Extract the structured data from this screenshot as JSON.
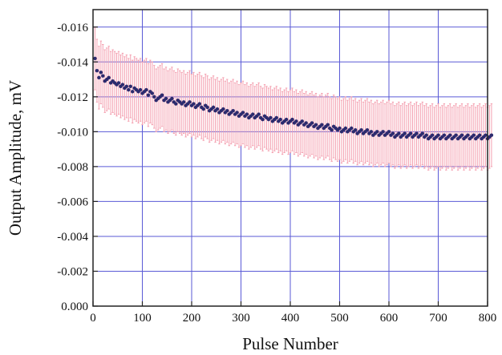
{
  "chart_data": {
    "type": "scatter",
    "title": "",
    "xlabel": "Pulse Number",
    "ylabel": "Output Amplitude, mV",
    "xlim": [
      0,
      800
    ],
    "ylim": [
      0.0,
      -0.017
    ],
    "y_axis_inverted": true,
    "grid": true,
    "x_ticks": [
      "0",
      "100",
      "200",
      "300",
      "400",
      "500",
      "600",
      "700",
      "800"
    ],
    "y_ticks": [
      "0.000",
      "-0.002",
      "-0.004",
      "-0.006",
      "-0.008",
      "-0.010",
      "-0.012",
      "-0.014",
      "-0.016"
    ],
    "series": [
      {
        "marker_color": "#2b2b6e",
        "errorbar_color": "#f4a0b0",
        "error_half_width": 0.0018,
        "x_start": 4,
        "x_step": 4,
        "values": [
          -0.0142,
          -0.0135,
          -0.0131,
          -0.0134,
          -0.0132,
          -0.0129,
          -0.013,
          -0.0131,
          -0.0128,
          -0.0129,
          -0.0128,
          -0.0127,
          -0.0128,
          -0.0126,
          -0.0127,
          -0.0125,
          -0.0126,
          -0.0124,
          -0.0126,
          -0.0123,
          -0.0125,
          -0.0124,
          -0.0123,
          -0.0124,
          -0.0122,
          -0.0123,
          -0.0124,
          -0.0121,
          -0.0123,
          -0.0122,
          -0.012,
          -0.0118,
          -0.0119,
          -0.012,
          -0.0121,
          -0.0118,
          -0.0119,
          -0.0117,
          -0.0118,
          -0.0119,
          -0.0117,
          -0.0116,
          -0.0118,
          -0.0117,
          -0.0116,
          -0.0117,
          -0.0115,
          -0.0116,
          -0.0117,
          -0.0115,
          -0.0116,
          -0.0114,
          -0.0115,
          -0.0116,
          -0.0114,
          -0.0113,
          -0.0115,
          -0.0114,
          -0.0112,
          -0.0113,
          -0.0114,
          -0.0112,
          -0.0113,
          -0.0111,
          -0.0112,
          -0.0113,
          -0.0111,
          -0.0112,
          -0.011,
          -0.0111,
          -0.0112,
          -0.011,
          -0.0111,
          -0.0109,
          -0.011,
          -0.0111,
          -0.0109,
          -0.011,
          -0.0108,
          -0.0109,
          -0.011,
          -0.0108,
          -0.0109,
          -0.011,
          -0.0108,
          -0.0107,
          -0.0109,
          -0.0108,
          -0.0107,
          -0.0108,
          -0.0106,
          -0.0107,
          -0.0108,
          -0.0106,
          -0.0107,
          -0.0105,
          -0.0106,
          -0.0107,
          -0.0105,
          -0.0106,
          -0.0107,
          -0.0105,
          -0.0106,
          -0.0104,
          -0.0105,
          -0.0106,
          -0.0104,
          -0.0105,
          -0.0103,
          -0.0104,
          -0.0105,
          -0.0103,
          -0.0104,
          -0.0102,
          -0.0103,
          -0.0104,
          -0.0102,
          -0.0103,
          -0.0104,
          -0.0102,
          -0.0101,
          -0.0103,
          -0.0102,
          -0.0101,
          -0.0102,
          -0.01,
          -0.0101,
          -0.0102,
          -0.01,
          -0.0101,
          -0.0102,
          -0.01,
          -0.0101,
          -0.0099,
          -0.01,
          -0.0101,
          -0.0099,
          -0.01,
          -0.0101,
          -0.0099,
          -0.01,
          -0.0098,
          -0.0099,
          -0.01,
          -0.0098,
          -0.0099,
          -0.01,
          -0.0098,
          -0.0099,
          -0.01,
          -0.0098,
          -0.0099,
          -0.0097,
          -0.0098,
          -0.0099,
          -0.0097,
          -0.0098,
          -0.0099,
          -0.0097,
          -0.0098,
          -0.0099,
          -0.0097,
          -0.0098,
          -0.0099,
          -0.0097,
          -0.0098,
          -0.0099,
          -0.0097,
          -0.0098,
          -0.0096,
          -0.0097,
          -0.0098,
          -0.0096,
          -0.0097,
          -0.0098,
          -0.0096,
          -0.0097,
          -0.0098,
          -0.0096,
          -0.0097,
          -0.0098,
          -0.0096,
          -0.0097,
          -0.0098,
          -0.0096,
          -0.0097,
          -0.0098,
          -0.0096,
          -0.0097,
          -0.0098,
          -0.0096,
          -0.0097,
          -0.0098,
          -0.0096,
          -0.0097,
          -0.0098,
          -0.0096,
          -0.0097,
          -0.0098,
          -0.0096,
          -0.0097,
          -0.0098
        ]
      }
    ]
  }
}
